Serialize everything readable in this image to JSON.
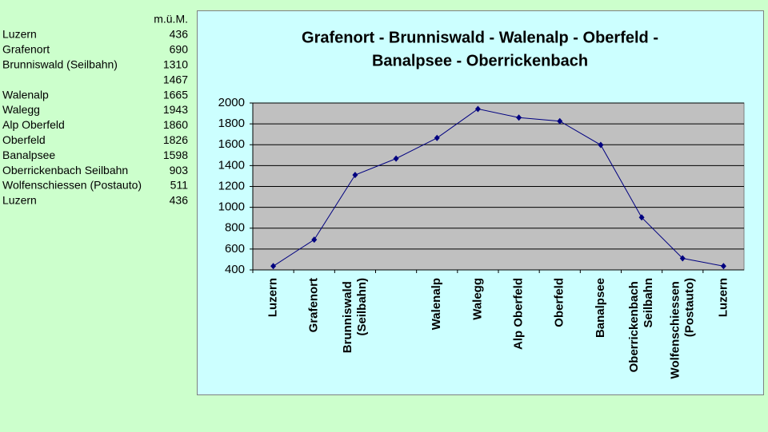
{
  "table": {
    "header": "m.ü.M.",
    "rows": [
      {
        "name": "Luzern",
        "value": 436
      },
      {
        "name": "Grafenort",
        "value": 690
      },
      {
        "name": "Brunniswald (Seilbahn)",
        "value": 1310
      },
      {
        "value": 1467
      },
      {
        "name": "Walenalp",
        "value": 1665
      },
      {
        "name": "Walegg",
        "value": 1943
      },
      {
        "name": "Alp Oberfeld",
        "value": 1860
      },
      {
        "name": "Oberfeld",
        "value": 1826
      },
      {
        "name": "Banalpsee",
        "value": 1598
      },
      {
        "name": "Oberrickenbach Seilbahn",
        "value": 903
      },
      {
        "name": "Wolfenschiessen (Postauto)",
        "value": 511
      },
      {
        "name": "Luzern",
        "value": 436
      }
    ]
  },
  "chart_data": {
    "type": "line",
    "title": [
      "Grafenort - Brunniswald - Walenalp - Oberfeld -",
      "Banalpsee - Oberrickenbach"
    ],
    "categories": [
      "Luzern",
      "Grafenort",
      "Brunniswald (Seilbahn)",
      null,
      "Walenalp",
      "Walegg",
      "Alp Oberfeld",
      "Oberfeld",
      "Banalpsee",
      "Oberrickenbach Seilbahn",
      "Wolfenschiessen (Postauto)",
      "Luzern"
    ],
    "values": [
      436,
      690,
      1310,
      1467,
      1665,
      1943,
      1860,
      1826,
      1598,
      903,
      511,
      436
    ],
    "color": "#000080",
    "ylim": [
      400,
      2000
    ],
    "yticks": [
      400,
      600,
      800,
      1000,
      1200,
      1400,
      1600,
      1800,
      2000
    ],
    "grid": true
  }
}
